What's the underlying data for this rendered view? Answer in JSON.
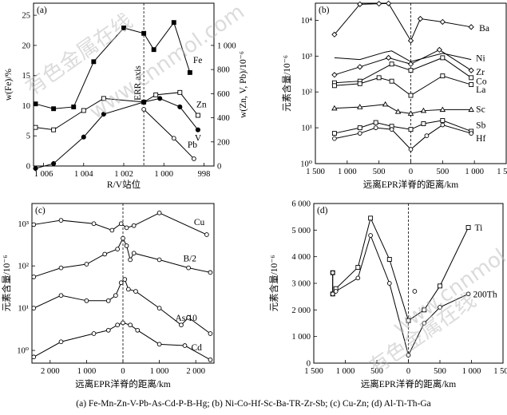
{
  "caption": "(a) Fe-Mn-Zn-V-Pb-As-Cd-P-B-Hg; (b) Ni-Co-Hf-Sc-Ba-TR-Zr-Sb; (c) Cu-Zn; (d) Al-Ti-Th-Ga",
  "watermark": [
    "有色金属在线",
    "www.cnnmol.com"
  ],
  "chart_data": [
    {
      "panel": "(a)",
      "type": "line",
      "xlabel": "R/V站位",
      "ylabel_left": "w(Fe)/%",
      "ylabel_right": "w(Zn, V, Pb)/10⁻⁶",
      "xlim": [
        1006.5,
        997.5
      ],
      "xticks": [
        1006,
        1004,
        1002,
        1000,
        998
      ],
      "ylim_left": [
        0,
        27
      ],
      "yticks_left": [
        0,
        5,
        10,
        15,
        20,
        25
      ],
      "ylim_right": [
        0,
        1350
      ],
      "yticks_right": [
        0,
        200,
        400,
        600,
        800,
        1000
      ],
      "vline": 1001,
      "vline_label": "ERR axis",
      "series": [
        {
          "name": "Fe",
          "axis": "left",
          "marker": "filled-square",
          "x": [
            1006.4,
            1005.5,
            1004.5,
            1003.5,
            1002,
            1001,
            1000.5,
            999.5,
            998.7
          ],
          "y": [
            10.3,
            9.5,
            9.8,
            17.3,
            22.9,
            22.0,
            19.3,
            23.8,
            15.5
          ]
        },
        {
          "name": "Zn",
          "axis": "right",
          "marker": "open-square",
          "x": [
            1006.4,
            1005.5,
            1004,
            1003,
            1001,
            1000.4,
            999.2,
            998.3
          ],
          "y": [
            320,
            300,
            460,
            560,
            530,
            590,
            610,
            420
          ]
        },
        {
          "name": "V",
          "axis": "right",
          "marker": "filled-circle",
          "x": [
            1006.4,
            1005.5,
            1004,
            1003,
            1001,
            1000.2,
            999.2,
            998.3
          ],
          "y": [
            -20,
            20,
            240,
            430,
            530,
            560,
            490,
            300
          ]
        },
        {
          "name": "Pb",
          "axis": "right",
          "marker": "open-circle",
          "x": [
            1001,
            999.5,
            998.5
          ],
          "y": [
            470,
            230,
            60
          ]
        }
      ]
    },
    {
      "panel": "(b)",
      "type": "line",
      "log_y": true,
      "xlabel": "远离EPR洋脊的距离/km",
      "ylabel": "元素含量/10⁻⁶",
      "xlim": [
        -1500,
        1500
      ],
      "xticks": [
        -1500,
        -1000,
        -500,
        0,
        500,
        1000,
        1500
      ],
      "xtick_labels": [
        "1 500",
        "1 000",
        "500",
        "0",
        "500",
        "1 000",
        "1 500"
      ],
      "ylim": [
        1,
        30000
      ],
      "yticks": [
        1,
        10,
        100,
        1000,
        10000
      ],
      "ytick_labels": [
        "10⁰",
        "10¹",
        "10²",
        "10³",
        "10⁴"
      ],
      "vline": 0,
      "series": [
        {
          "name": "Ba",
          "x": [
            -1200,
            -800,
            -500,
            -350,
            0,
            150,
            500,
            950
          ],
          "y": [
            4000,
            28000,
            29000,
            29500,
            2700,
            11000,
            9000,
            6500
          ]
        },
        {
          "name": "Ni",
          "x": [
            -1200,
            -800,
            -400,
            -300,
            0,
            500,
            950
          ],
          "y": [
            900,
            800,
            1300,
            1400,
            700,
            1200,
            800
          ]
        },
        {
          "name": "Zr",
          "x": [
            -1200,
            -800,
            -350,
            0,
            450,
            950
          ],
          "y": [
            300,
            500,
            900,
            600,
            1500,
            400
          ]
        },
        {
          "name": "Co",
          "x": [
            -1200,
            -800,
            -300,
            0,
            500,
            950
          ],
          "y": [
            180,
            200,
            600,
            400,
            900,
            250
          ]
        },
        {
          "name": "La",
          "x": [
            -1200,
            -800,
            -500,
            -300,
            0,
            500,
            950
          ],
          "y": [
            150,
            170,
            250,
            200,
            80,
            280,
            160
          ]
        },
        {
          "name": "Sc",
          "x": [
            -1200,
            -800,
            -400,
            -200,
            0,
            200,
            500,
            950
          ],
          "y": [
            35,
            38,
            45,
            28,
            25,
            30,
            32,
            32
          ]
        },
        {
          "name": "Sb",
          "x": [
            -1200,
            -800,
            -550,
            -300,
            0,
            200,
            500,
            950
          ],
          "y": [
            7,
            10,
            14,
            11,
            9,
            13,
            16,
            8
          ]
        },
        {
          "name": "Hf",
          "x": [
            -1200,
            -800,
            -550,
            -300,
            0,
            250,
            500,
            950
          ],
          "y": [
            5,
            7,
            10,
            9,
            2.5,
            6,
            12,
            7
          ]
        }
      ]
    },
    {
      "panel": "(c)",
      "type": "line",
      "log_y": true,
      "xlabel": "远离EPR洋脊的距离/km",
      "ylabel": "元素含量/10⁻⁶",
      "xlim": [
        -2500,
        2500
      ],
      "xticks": [
        -2000,
        -1000,
        0,
        1000,
        2000
      ],
      "xtick_labels": [
        "2 000",
        "1 000",
        "0",
        "1 000",
        "2 000"
      ],
      "ylim": [
        0.5,
        3000
      ],
      "yticks": [
        1,
        10,
        100,
        1000
      ],
      "ytick_labels": [
        "10⁰",
        "10¹",
        "10²",
        "10³"
      ],
      "vline": 0,
      "series": [
        {
          "name": "Cu",
          "x": [
            -2450,
            -1700,
            -800,
            -300,
            -50,
            100,
            300,
            1000,
            2300
          ],
          "y": [
            950,
            1200,
            1000,
            700,
            1000,
            800,
            900,
            1800,
            550
          ]
        },
        {
          "name": "B/2",
          "x": [
            -2450,
            -1700,
            -1000,
            -500,
            -150,
            0,
            100,
            200,
            300,
            1000,
            1800,
            2400
          ],
          "y": [
            55,
            90,
            110,
            190,
            250,
            450,
            300,
            140,
            200,
            140,
            90,
            70
          ]
        },
        {
          "name": "As/10",
          "x": [
            -2450,
            -1700,
            -1000,
            -400,
            -200,
            -50,
            50,
            150,
            350,
            1000,
            1600,
            1800,
            2400
          ],
          "y": [
            10,
            20,
            15,
            15,
            20,
            40,
            48,
            28,
            25,
            10,
            4,
            6,
            2.5
          ]
        },
        {
          "name": "Cd",
          "x": [
            -2450,
            -1700,
            -800,
            -400,
            -150,
            0,
            200,
            400,
            1000,
            1700,
            2400
          ],
          "y": [
            0.7,
            1.6,
            2.5,
            3,
            4,
            4.5,
            4,
            3,
            1.4,
            1.3,
            0.6
          ]
        }
      ]
    },
    {
      "panel": "(d)",
      "type": "line",
      "xlabel": "远离EPR洋脊的距离/km",
      "ylabel": "元素含量/10⁻⁶",
      "xlim": [
        -1500,
        1500
      ],
      "xticks": [
        -1500,
        -1000,
        -500,
        0,
        500,
        1000,
        1500
      ],
      "xtick_labels": [
        "1 500",
        "1 000",
        "500",
        "0",
        "500",
        "1 000",
        "1 500"
      ],
      "ylim": [
        0,
        6000
      ],
      "yticks": [
        0,
        1000,
        2000,
        3000,
        4000,
        5000,
        6000
      ],
      "ytick_labels": [
        "0",
        "1 000",
        "2 000",
        "3 000",
        "4 000",
        "5 000",
        "6 000"
      ],
      "vline": 0,
      "series": [
        {
          "name": "Ti",
          "marker": "open-square",
          "x": [
            -1200,
            -1200,
            -1150,
            -800,
            -600,
            -300,
            0,
            250,
            500,
            950
          ],
          "y": [
            3400,
            2600,
            2800,
            3600,
            5450,
            3900,
            1600,
            2000,
            2900,
            5100
          ]
        },
        {
          "name": "200Th",
          "marker": "open-circle",
          "x": [
            -1200,
            -1200,
            -1150,
            -800,
            -600,
            -300,
            0,
            250,
            500,
            950
          ],
          "y": [
            3400,
            2600,
            2700,
            3200,
            4800,
            3000,
            300,
            1500,
            2100,
            2600
          ]
        }
      ],
      "extra_points": [
        {
          "x": 100,
          "y": 2700
        }
      ]
    }
  ]
}
